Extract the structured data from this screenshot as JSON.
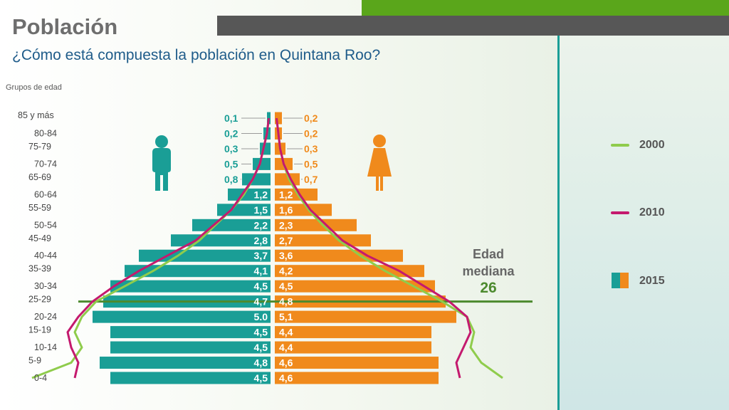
{
  "header": {
    "title": "Población",
    "subtitle": "¿Cómo está compuesta la población en Quintana Roo?"
  },
  "colors": {
    "male": "#1a9e96",
    "female": "#f08a1c",
    "line_2000": "#8fcc4c",
    "line_2010": "#c41a6e",
    "median_line": "#4c8a2e",
    "accent_green": "#5aa61b"
  },
  "median": {
    "label_line1": "Edad",
    "label_line2": "mediana",
    "value": "26"
  },
  "legend": {
    "y2000": "2000",
    "y2010": "2010",
    "y2015": "2015"
  },
  "chart_data": {
    "type": "bar",
    "subtype": "population-pyramid",
    "ylabel": "Grupos de edad",
    "categories": [
      "0-4",
      "5-9",
      "10-14",
      "15-19",
      "20-24",
      "25-29",
      "30-34",
      "35-39",
      "40-44",
      "45-49",
      "50-54",
      "55-59",
      "60-64",
      "65-69",
      "70-74",
      "75-79",
      "80-84",
      "85 y más"
    ],
    "series": [
      {
        "name": "2015",
        "group": "hombres",
        "values": [
          4.5,
          4.8,
          4.5,
          4.5,
          5.0,
          4.7,
          4.5,
          4.1,
          3.7,
          2.8,
          2.2,
          1.5,
          1.2,
          0.8,
          0.5,
          0.3,
          0.2,
          0.1
        ],
        "labels": [
          "4,5",
          "4,8",
          "4,5",
          "4,5",
          "5.0",
          "4,7",
          "4,5",
          "4,1",
          "3,7",
          "2,8",
          "2,2",
          "1,5",
          "1,2",
          "0,8",
          "0,5",
          "0,3",
          "0,2",
          "0,1"
        ]
      },
      {
        "name": "2015",
        "group": "mujeres",
        "values": [
          4.6,
          4.6,
          4.4,
          4.4,
          5.1,
          4.8,
          4.5,
          4.2,
          3.6,
          2.7,
          2.3,
          1.6,
          1.2,
          0.7,
          0.5,
          0.3,
          0.2,
          0.2
        ],
        "labels": [
          "4,6",
          "4,6",
          "4,4",
          "4,4",
          "5,1",
          "4,8",
          "4,5",
          "4,2",
          "3,6",
          "2,7",
          "2,3",
          "1,6",
          "1,2",
          "0,7",
          "0,5",
          "0,3",
          "0,2",
          "0,2"
        ]
      },
      {
        "name": "2000",
        "group": "hombres",
        "values": [
          6.7,
          5.6,
          5.3,
          5.5,
          5.3,
          4.9,
          4.1,
          3.3,
          2.6,
          2.0,
          1.55,
          1.1,
          0.75,
          0.5,
          0.3,
          0.2,
          0.1,
          0.05
        ]
      },
      {
        "name": "2000",
        "group": "mujeres",
        "values": [
          6.4,
          5.8,
          5.5,
          5.6,
          5.4,
          4.7,
          3.9,
          3.1,
          2.4,
          1.8,
          1.35,
          0.95,
          0.65,
          0.4,
          0.25,
          0.15,
          0.1,
          0.05
        ]
      },
      {
        "name": "2010",
        "group": "hombres",
        "values": [
          5.5,
          5.4,
          5.6,
          5.7,
          5.4,
          5.0,
          4.4,
          3.7,
          2.9,
          2.1,
          1.6,
          1.1,
          0.8,
          0.5,
          0.3,
          0.2,
          0.1,
          0.05
        ]
      },
      {
        "name": "2010",
        "group": "mujeres",
        "values": [
          5.2,
          5.1,
          5.3,
          5.5,
          5.4,
          4.9,
          4.2,
          3.5,
          2.6,
          1.9,
          1.45,
          1.0,
          0.7,
          0.45,
          0.25,
          0.15,
          0.1,
          0.05
        ]
      }
    ],
    "median_age": 26,
    "median_group": "25-29"
  }
}
